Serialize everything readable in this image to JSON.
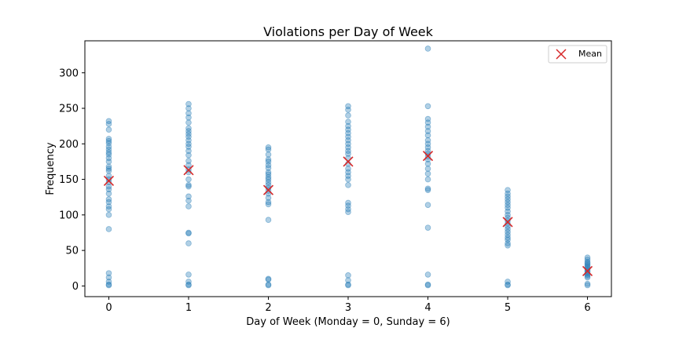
{
  "chart_data": {
    "type": "scatter",
    "title": "Violations per Day of Week",
    "xlabel": "Day of Week (Monday = 0, Sunday = 6)",
    "ylabel": "Frequency",
    "xlim": [
      -0.3,
      6.3
    ],
    "ylim": [
      -15,
      345
    ],
    "xticks": [
      0,
      1,
      2,
      3,
      4,
      5,
      6
    ],
    "yticks": [
      0,
      50,
      100,
      150,
      200,
      250,
      300
    ],
    "grid": false,
    "legend": {
      "position": "top-right",
      "entries": [
        "Mean"
      ]
    },
    "series": [
      {
        "marker": "circle",
        "color": "#1f77b4",
        "alpha": 0.35,
        "points": [
          [
            0,
            232
          ],
          [
            0,
            228
          ],
          [
            0,
            220
          ],
          [
            0,
            207
          ],
          [
            0,
            204
          ],
          [
            0,
            201
          ],
          [
            0,
            196
          ],
          [
            0,
            192
          ],
          [
            0,
            188
          ],
          [
            0,
            185
          ],
          [
            0,
            180
          ],
          [
            0,
            175
          ],
          [
            0,
            168
          ],
          [
            0,
            165
          ],
          [
            0,
            162
          ],
          [
            0,
            155
          ],
          [
            0,
            150
          ],
          [
            0,
            146
          ],
          [
            0,
            140
          ],
          [
            0,
            136
          ],
          [
            0,
            130
          ],
          [
            0,
            122
          ],
          [
            0,
            118
          ],
          [
            0,
            112
          ],
          [
            0,
            108
          ],
          [
            0,
            100
          ],
          [
            0,
            80
          ],
          [
            0,
            18
          ],
          [
            0,
            12
          ],
          [
            0,
            6
          ],
          [
            0,
            2
          ],
          [
            0,
            1
          ],
          [
            1,
            256
          ],
          [
            1,
            250
          ],
          [
            1,
            243
          ],
          [
            1,
            237
          ],
          [
            1,
            230
          ],
          [
            1,
            222
          ],
          [
            1,
            218
          ],
          [
            1,
            214
          ],
          [
            1,
            210
          ],
          [
            1,
            205
          ],
          [
            1,
            200
          ],
          [
            1,
            196
          ],
          [
            1,
            190
          ],
          [
            1,
            184
          ],
          [
            1,
            176
          ],
          [
            1,
            170
          ],
          [
            1,
            164
          ],
          [
            1,
            160
          ],
          [
            1,
            150
          ],
          [
            1,
            142
          ],
          [
            1,
            140
          ],
          [
            1,
            126
          ],
          [
            1,
            120
          ],
          [
            1,
            112
          ],
          [
            1,
            75
          ],
          [
            1,
            74
          ],
          [
            1,
            60
          ],
          [
            1,
            16
          ],
          [
            1,
            6
          ],
          [
            1,
            2
          ],
          [
            1,
            1
          ],
          [
            2,
            195
          ],
          [
            2,
            192
          ],
          [
            2,
            185
          ],
          [
            2,
            178
          ],
          [
            2,
            175
          ],
          [
            2,
            170
          ],
          [
            2,
            166
          ],
          [
            2,
            160
          ],
          [
            2,
            157
          ],
          [
            2,
            153
          ],
          [
            2,
            150
          ],
          [
            2,
            146
          ],
          [
            2,
            142
          ],
          [
            2,
            138
          ],
          [
            2,
            134
          ],
          [
            2,
            130
          ],
          [
            2,
            124
          ],
          [
            2,
            118
          ],
          [
            2,
            115
          ],
          [
            2,
            93
          ],
          [
            2,
            10
          ],
          [
            2,
            9
          ],
          [
            2,
            2
          ],
          [
            2,
            1
          ],
          [
            3,
            253
          ],
          [
            3,
            248
          ],
          [
            3,
            240
          ],
          [
            3,
            231
          ],
          [
            3,
            225
          ],
          [
            3,
            220
          ],
          [
            3,
            215
          ],
          [
            3,
            210
          ],
          [
            3,
            205
          ],
          [
            3,
            200
          ],
          [
            3,
            195
          ],
          [
            3,
            190
          ],
          [
            3,
            186
          ],
          [
            3,
            180
          ],
          [
            3,
            172
          ],
          [
            3,
            165
          ],
          [
            3,
            160
          ],
          [
            3,
            155
          ],
          [
            3,
            150
          ],
          [
            3,
            142
          ],
          [
            3,
            117
          ],
          [
            3,
            113
          ],
          [
            3,
            108
          ],
          [
            3,
            104
          ],
          [
            3,
            15
          ],
          [
            3,
            8
          ],
          [
            3,
            2
          ],
          [
            3,
            1
          ],
          [
            4,
            334
          ],
          [
            4,
            253
          ],
          [
            4,
            235
          ],
          [
            4,
            230
          ],
          [
            4,
            224
          ],
          [
            4,
            218
          ],
          [
            4,
            212
          ],
          [
            4,
            205
          ],
          [
            4,
            200
          ],
          [
            4,
            195
          ],
          [
            4,
            190
          ],
          [
            4,
            186
          ],
          [
            4,
            182
          ],
          [
            4,
            178
          ],
          [
            4,
            172
          ],
          [
            4,
            165
          ],
          [
            4,
            158
          ],
          [
            4,
            150
          ],
          [
            4,
            137
          ],
          [
            4,
            135
          ],
          [
            4,
            114
          ],
          [
            4,
            82
          ],
          [
            4,
            16
          ],
          [
            4,
            2
          ],
          [
            4,
            1
          ],
          [
            5,
            135
          ],
          [
            5,
            130
          ],
          [
            5,
            126
          ],
          [
            5,
            122
          ],
          [
            5,
            118
          ],
          [
            5,
            114
          ],
          [
            5,
            110
          ],
          [
            5,
            105
          ],
          [
            5,
            100
          ],
          [
            5,
            96
          ],
          [
            5,
            92
          ],
          [
            5,
            88
          ],
          [
            5,
            84
          ],
          [
            5,
            80
          ],
          [
            5,
            76
          ],
          [
            5,
            72
          ],
          [
            5,
            68
          ],
          [
            5,
            65
          ],
          [
            5,
            60
          ],
          [
            5,
            57
          ],
          [
            5,
            6
          ],
          [
            5,
            2
          ],
          [
            5,
            1
          ],
          [
            6,
            40
          ],
          [
            6,
            37
          ],
          [
            6,
            34
          ],
          [
            6,
            32
          ],
          [
            6,
            30
          ],
          [
            6,
            28
          ],
          [
            6,
            26
          ],
          [
            6,
            24
          ],
          [
            6,
            22
          ],
          [
            6,
            20
          ],
          [
            6,
            18
          ],
          [
            6,
            16
          ],
          [
            6,
            14
          ],
          [
            6,
            12
          ],
          [
            6,
            3
          ],
          [
            6,
            1
          ]
        ]
      },
      {
        "name": "Mean",
        "marker": "x",
        "color": "#d62728",
        "points": [
          [
            0,
            148
          ],
          [
            1,
            163
          ],
          [
            2,
            135
          ],
          [
            3,
            175
          ],
          [
            4,
            183
          ],
          [
            5,
            90
          ],
          [
            6,
            21
          ]
        ]
      }
    ]
  }
}
